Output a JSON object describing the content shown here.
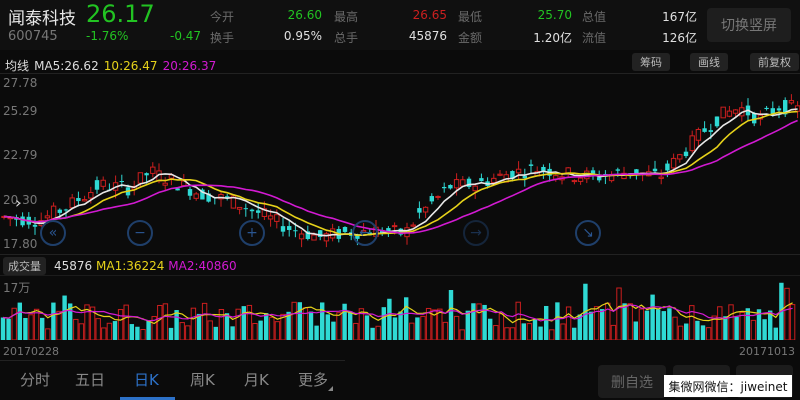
{
  "header": {
    "name": "闻泰科技",
    "code": "600745",
    "price": "26.17",
    "change_pct": "-1.76%",
    "change": "-0.47",
    "stats": [
      {
        "label": "今开",
        "value": "26.60",
        "color": "#22c322"
      },
      {
        "label": "最高",
        "value": "26.65",
        "color": "#cc1f1f"
      },
      {
        "label": "最低",
        "value": "25.70",
        "color": "#22c322"
      },
      {
        "label": "总值",
        "value": "167亿",
        "color": "#e0e0e0"
      },
      {
        "label": "换手",
        "value": "0.95%",
        "color": "#e0e0e0"
      },
      {
        "label": "总手",
        "value": "45876",
        "color": "#e0e0e0"
      },
      {
        "label": "金额",
        "value": "1.20亿",
        "color": "#e0e0e0"
      },
      {
        "label": "流值",
        "value": "126亿",
        "color": "#e0e0e0"
      }
    ],
    "switch_label": "切换竖屏"
  },
  "ma_bar": {
    "label": "均线",
    "ma5": "MA5:26.62",
    "ma10": "10:26.47",
    "ma20": "20:26.37",
    "buttons": [
      "筹码",
      "画线",
      "前复权"
    ]
  },
  "price_axis": [
    "27.78",
    "25.29",
    "22.79",
    "20.30",
    "17.80"
  ],
  "chart_controls": [
    "double-left",
    "zoom-out",
    "zoom-in",
    "left",
    "right",
    "collapse"
  ],
  "volume": {
    "button": "成交量",
    "value": "45876",
    "ma1": "MA1:36224",
    "ma2": "MA2:40860",
    "axis_max": "17万"
  },
  "dates": {
    "start": "20170228",
    "end": "20171013"
  },
  "tabs": [
    "分时",
    "五日",
    "日K",
    "周K",
    "月K",
    "更多"
  ],
  "active_tab": 2,
  "bottom_buttons": [
    "删自选",
    "",
    ""
  ],
  "watermark": "集微网微信：jiweinet",
  "colors": {
    "up": "#cc1f1f",
    "down": "#2fd9d4",
    "ma5": "#e8e8e8",
    "ma10": "#e6d21a",
    "ma20": "#d21ad2",
    "accent": "#2d72c9"
  }
}
